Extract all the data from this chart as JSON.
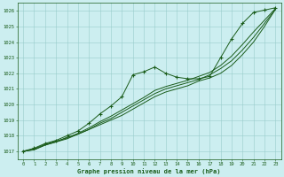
{
  "title": "Graphe pression niveau de la mer (hPa)",
  "xlabel_hours": [
    0,
    1,
    2,
    3,
    4,
    5,
    6,
    7,
    8,
    9,
    10,
    11,
    12,
    13,
    14,
    15,
    16,
    17,
    18,
    19,
    20,
    21,
    22,
    23
  ],
  "ylim": [
    1016.5,
    1026.5
  ],
  "yticks": [
    1017,
    1018,
    1019,
    1020,
    1021,
    1022,
    1023,
    1024,
    1025,
    1026
  ],
  "bg_color": "#cceef0",
  "grid_color": "#99cccc",
  "line_color": "#1a5c1a",
  "s_base": [
    1017.0,
    1017.1,
    1017.4,
    1017.6,
    1017.9,
    1018.1,
    1018.4,
    1018.7,
    1019.0,
    1019.3,
    1019.7,
    1020.1,
    1020.5,
    1020.8,
    1021.0,
    1021.2,
    1021.5,
    1021.7,
    1022.0,
    1022.5,
    1023.2,
    1024.0,
    1025.0,
    1026.1
  ],
  "s_mid": [
    1017.0,
    1017.1,
    1017.4,
    1017.6,
    1017.8,
    1018.1,
    1018.4,
    1018.8,
    1019.1,
    1019.5,
    1019.9,
    1020.3,
    1020.7,
    1021.0,
    1021.2,
    1021.4,
    1021.6,
    1021.9,
    1022.3,
    1022.8,
    1023.5,
    1024.3,
    1025.2,
    1026.1
  ],
  "s_top": [
    1017.0,
    1017.15,
    1017.45,
    1017.65,
    1017.85,
    1018.15,
    1018.5,
    1018.9,
    1019.25,
    1019.65,
    1020.05,
    1020.45,
    1020.9,
    1021.15,
    1021.35,
    1021.55,
    1021.8,
    1022.05,
    1022.5,
    1023.1,
    1023.85,
    1024.65,
    1025.4,
    1026.15
  ],
  "s_mark": [
    1017.0,
    1017.2,
    1017.5,
    1017.7,
    1018.0,
    1018.3,
    1018.8,
    1019.4,
    1019.9,
    1020.5,
    1021.9,
    1022.1,
    1022.4,
    1022.0,
    1021.75,
    1021.65,
    1021.65,
    1021.8,
    1023.0,
    1024.2,
    1025.2,
    1025.9,
    1026.05,
    1026.2
  ]
}
